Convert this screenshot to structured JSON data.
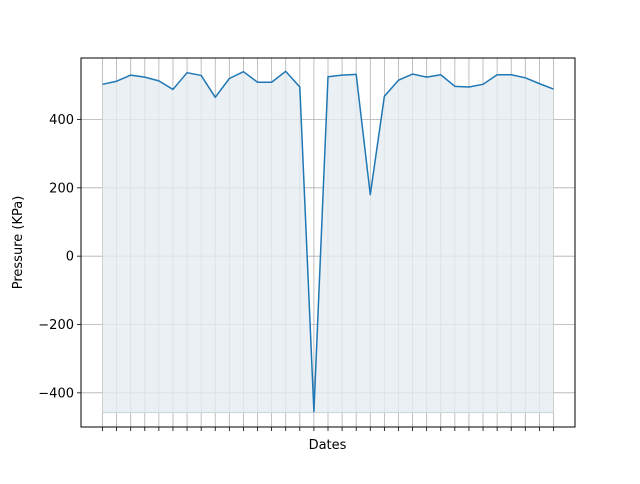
{
  "chart_data": {
    "type": "area",
    "title": "",
    "xlabel": "Dates",
    "ylabel": "Pressure (KPa)",
    "ylim": [
      -500,
      580
    ],
    "y_ticks": [
      -400,
      -200,
      0,
      200,
      400
    ],
    "x_tick_labels_visible": false,
    "fill_baseline": -458,
    "grid": {
      "x": true,
      "y": true
    },
    "legend": "none",
    "series": [
      {
        "values": [
          503,
          512,
          530,
          524,
          513,
          488,
          537,
          529,
          465,
          520,
          540,
          509,
          509,
          541,
          495,
          -455,
          525,
          530,
          532,
          180,
          468,
          515,
          533,
          524,
          531,
          497,
          495,
          503,
          531,
          531,
          522,
          505,
          489
        ],
        "color": "#1f77b4"
      }
    ],
    "colors": {
      "line": "#1f77b4",
      "fill": "#e5ecf0",
      "grid": "#b0b0b0",
      "axes": "#000000"
    }
  }
}
